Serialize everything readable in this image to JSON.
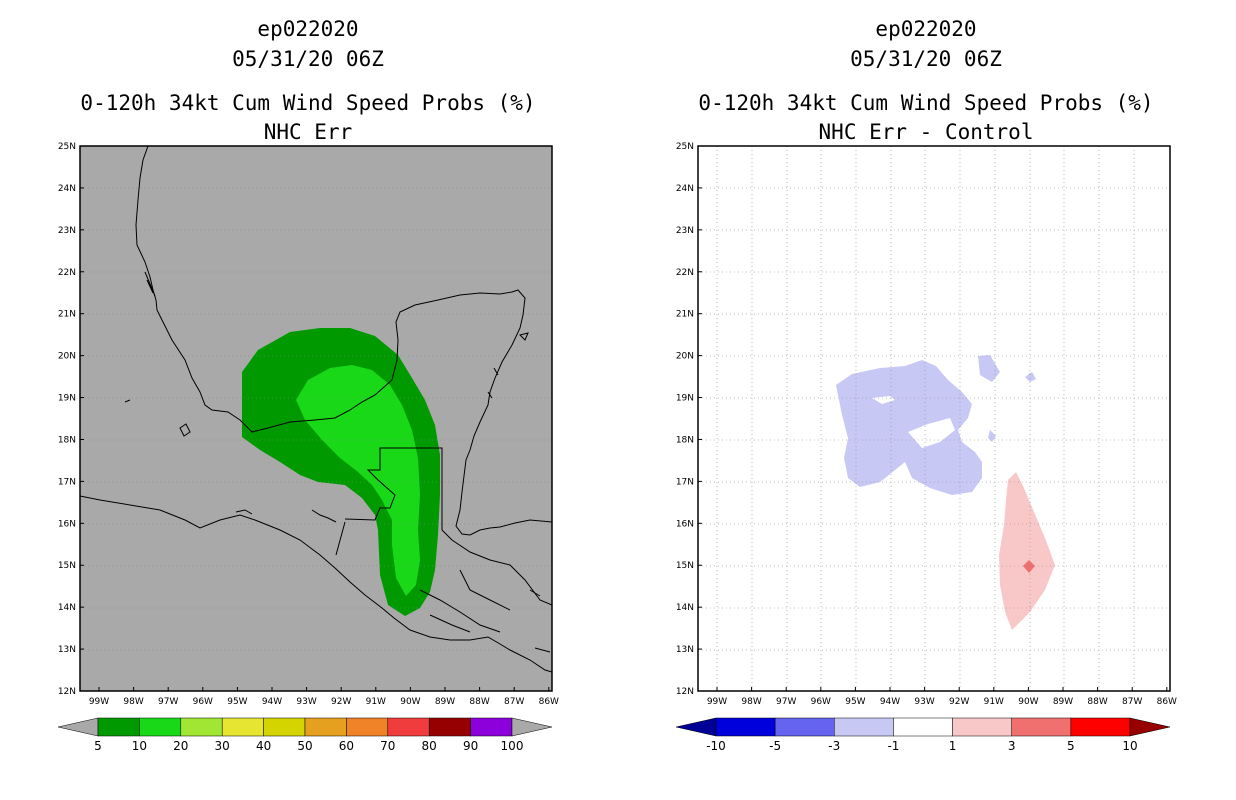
{
  "panels": [
    {
      "storm_id": "ep022020",
      "datetime": "05/31/20 06Z",
      "product": "0-120h 34kt Cum Wind Speed Probs (%)",
      "subtitle": "NHC Err",
      "colors": {
        "background": "#a9a9a9",
        "coast": "#000000"
      },
      "legend": {
        "labels": [
          "5",
          "10",
          "20",
          "30",
          "40",
          "50",
          "60",
          "70",
          "80",
          "90",
          "100"
        ],
        "colors": [
          "#009a00",
          "#18d818",
          "#a0e632",
          "#e6e632",
          "#d4d400",
          "#e6a020",
          "#f08228",
          "#f03c3c",
          "#960000",
          "#8c00dc"
        ],
        "under_color": "#a9a9a9",
        "over_color": "#a9a9a9"
      }
    },
    {
      "storm_id": "ep022020",
      "datetime": "05/31/20 06Z",
      "product": "0-120h 34kt Cum Wind Speed Probs (%)",
      "subtitle": "NHC Err - Control",
      "colors": {
        "background": "#ffffff",
        "coast": "#000000"
      },
      "legend": {
        "labels": [
          "-10",
          "-5",
          "-3",
          "-1",
          "1",
          "3",
          "5",
          "10"
        ],
        "colors": [
          "#0000dc",
          "#6464f0",
          "#c8c8f5",
          "#ffffff",
          "#f8c8c8",
          "#f07070",
          "#ff0000"
        ],
        "under_color": "#000096",
        "over_color": "#960000"
      }
    }
  ],
  "axes": {
    "lat_labels": [
      "25N",
      "24N",
      "23N",
      "22N",
      "21N",
      "20N",
      "19N",
      "18N",
      "17N",
      "16N",
      "15N",
      "14N",
      "13N",
      "12N"
    ],
    "lon_labels": [
      "99W",
      "98W",
      "97W",
      "96W",
      "95W",
      "94W",
      "93W",
      "92W",
      "91W",
      "90W",
      "89W",
      "88W",
      "87W",
      "86W"
    ]
  }
}
